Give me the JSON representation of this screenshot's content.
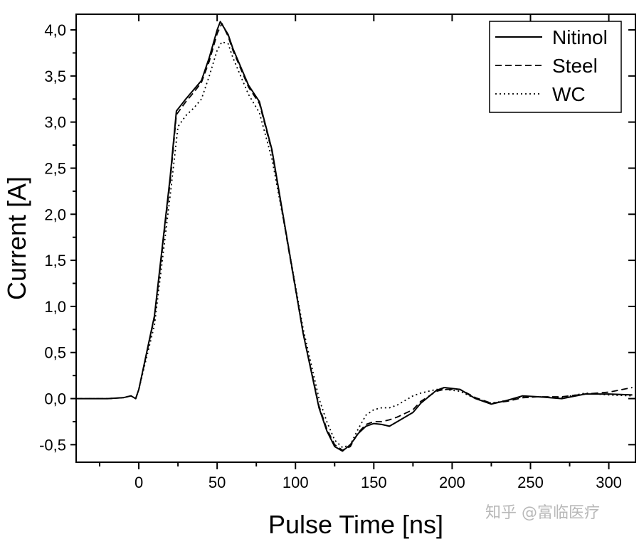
{
  "chart_data": {
    "type": "line",
    "title": "",
    "xlabel": "Pulse Time [ns]",
    "ylabel": "Current [A]",
    "xlim": [
      -40,
      317
    ],
    "ylim": [
      -0.69,
      4.17
    ],
    "xticks": [
      0,
      50,
      100,
      150,
      200,
      250,
      300
    ],
    "xtick_labels": [
      "0",
      "50",
      "100",
      "150",
      "200",
      "250",
      "300"
    ],
    "yticks": [
      -0.5,
      0,
      0.5,
      1,
      1.5,
      2,
      2.5,
      3,
      3.5,
      4
    ],
    "ytick_labels": [
      "-0,5",
      "0,0",
      "0,5",
      "1,0",
      "1,5",
      "2,0",
      "2,5",
      "3,0",
      "3,5",
      "4,0"
    ],
    "grid": false,
    "legend_position": "top-right",
    "series": [
      {
        "name": "Nitinol",
        "style": "solid",
        "x": [
          -40,
          -20,
          -10,
          -5,
          -2,
          0,
          10,
          20,
          24,
          30,
          35,
          40,
          45,
          50,
          52,
          57,
          60,
          65,
          70,
          77,
          85,
          95,
          105,
          115,
          120,
          125,
          130,
          135,
          140,
          145,
          150,
          155,
          160,
          165,
          175,
          180,
          190,
          195,
          205,
          215,
          225,
          235,
          245,
          255,
          270,
          285,
          300,
          315
        ],
        "y": [
          0,
          0,
          0.01,
          0.03,
          0.0,
          0.1,
          0.9,
          2.4,
          3.12,
          3.25,
          3.35,
          3.45,
          3.7,
          4.0,
          4.09,
          3.95,
          3.8,
          3.6,
          3.4,
          3.22,
          2.7,
          1.7,
          0.7,
          -0.1,
          -0.35,
          -0.52,
          -0.57,
          -0.5,
          -0.38,
          -0.3,
          -0.27,
          -0.28,
          -0.3,
          -0.25,
          -0.15,
          -0.05,
          0.09,
          0.12,
          0.1,
          0.0,
          -0.06,
          -0.02,
          0.03,
          0.02,
          0.0,
          0.05,
          0.05,
          0.04
        ]
      },
      {
        "name": "Steel",
        "style": "dashed",
        "x": [
          -40,
          -20,
          -10,
          -5,
          -2,
          0,
          10,
          20,
          24,
          30,
          35,
          40,
          45,
          50,
          53,
          57,
          60,
          65,
          70,
          77,
          85,
          95,
          105,
          115,
          120,
          125,
          130,
          135,
          140,
          145,
          150,
          155,
          160,
          165,
          175,
          180,
          190,
          195,
          205,
          215,
          225,
          235,
          245,
          255,
          270,
          285,
          300,
          315
        ],
        "y": [
          0,
          0,
          0.01,
          0.03,
          0.0,
          0.1,
          0.88,
          2.35,
          3.08,
          3.22,
          3.32,
          3.43,
          3.66,
          3.96,
          4.07,
          3.93,
          3.78,
          3.58,
          3.38,
          3.2,
          2.68,
          1.68,
          0.7,
          -0.08,
          -0.33,
          -0.5,
          -0.56,
          -0.52,
          -0.37,
          -0.28,
          -0.25,
          -0.25,
          -0.23,
          -0.2,
          -0.12,
          -0.03,
          0.08,
          0.1,
          0.1,
          0.01,
          -0.05,
          -0.03,
          0.01,
          0.02,
          0.02,
          0.05,
          0.07,
          0.12
        ]
      },
      {
        "name": "WC",
        "style": "dotted",
        "x": [
          -40,
          -20,
          -10,
          -5,
          -2,
          0,
          10,
          20,
          25,
          30,
          35,
          40,
          45,
          50,
          53,
          57,
          60,
          65,
          70,
          77,
          85,
          95,
          105,
          115,
          120,
          125,
          130,
          135,
          140,
          145,
          150,
          155,
          160,
          165,
          175,
          180,
          190,
          195,
          205,
          215,
          225,
          235,
          245,
          255,
          270,
          285,
          300,
          315
        ],
        "y": [
          0,
          0,
          0.01,
          0.03,
          0.0,
          0.1,
          0.8,
          2.2,
          2.95,
          3.07,
          3.15,
          3.25,
          3.5,
          3.78,
          3.87,
          3.85,
          3.7,
          3.5,
          3.3,
          3.1,
          2.6,
          1.7,
          0.75,
          0.0,
          -0.25,
          -0.45,
          -0.53,
          -0.5,
          -0.33,
          -0.18,
          -0.12,
          -0.1,
          -0.1,
          -0.07,
          0.03,
          0.06,
          0.1,
          0.1,
          0.08,
          0.0,
          -0.05,
          -0.02,
          0.02,
          0.02,
          0.01,
          0.06,
          0.04,
          0.03
        ]
      }
    ]
  },
  "watermark": "知乎 @富临医疗"
}
